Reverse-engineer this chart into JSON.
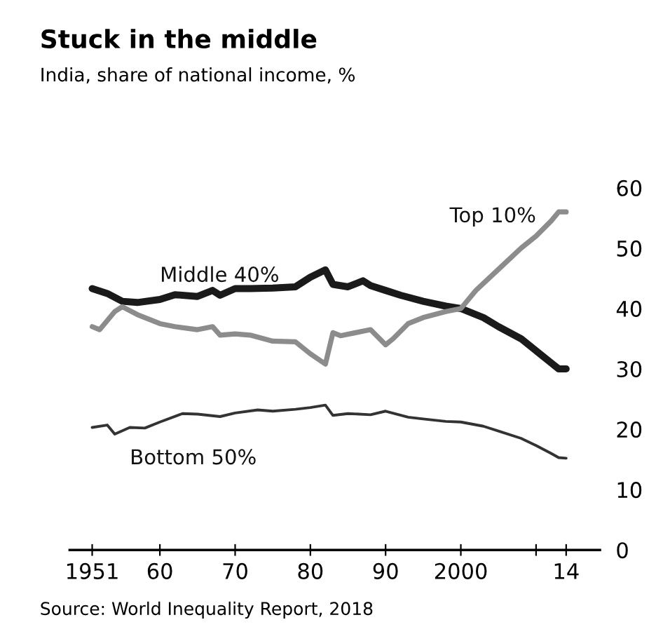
{
  "chart_data": {
    "type": "line",
    "title": "Stuck in the middle",
    "subtitle": "India, share of national income, %",
    "xlim": [
      1948,
      2018.5
    ],
    "ylim": [
      0,
      60
    ],
    "xticks": [
      {
        "value": 1951,
        "label": "1951"
      },
      {
        "value": 1960,
        "label": "60"
      },
      {
        "value": 1970,
        "label": "70"
      },
      {
        "value": 1980,
        "label": "80"
      },
      {
        "value": 1990,
        "label": "90"
      },
      {
        "value": 2000,
        "label": "2000"
      },
      {
        "value": 2010,
        "label": null
      },
      {
        "value": 2014,
        "label": "14"
      }
    ],
    "yticks": [
      0,
      10,
      20,
      30,
      40,
      50,
      60
    ],
    "grid": false,
    "legend": false,
    "series": [
      {
        "name": "Middle 40%",
        "color": "#1a1a1a",
        "x": [
          1951,
          1953,
          1955,
          1957,
          1960,
          1962,
          1965,
          1967,
          1968,
          1970,
          1972,
          1975,
          1978,
          1980,
          1982,
          1983,
          1985,
          1987,
          1988,
          1990,
          1992,
          1995,
          1998,
          2000,
          2003,
          2005,
          2008,
          2010,
          2012,
          2013,
          2014
        ],
        "values": [
          43.3,
          42.5,
          41.2,
          41,
          41.5,
          42.3,
          42,
          43,
          42.2,
          43.3,
          43.3,
          43.4,
          43.6,
          45.2,
          46.4,
          44,
          43.6,
          44.6,
          43.8,
          43,
          42.2,
          41.2,
          40.4,
          40,
          38.5,
          37,
          35,
          33,
          31,
          30,
          30
        ]
      },
      {
        "name": "Top 10%",
        "color": "#8c8c8c",
        "x": [
          1951,
          1952,
          1954,
          1955,
          1957,
          1960,
          1962,
          1965,
          1967,
          1968,
          1970,
          1972,
          1975,
          1978,
          1980,
          1982,
          1983,
          1984,
          1986,
          1988,
          1990,
          1991,
          1993,
          1995,
          1998,
          2000,
          2002,
          2005,
          2008,
          2010,
          2012,
          2013,
          2014
        ],
        "values": [
          37,
          36.5,
          39.5,
          40.3,
          39,
          37.5,
          37,
          36.5,
          37,
          35.6,
          35.8,
          35.6,
          34.6,
          34.5,
          32.5,
          30.8,
          36,
          35.5,
          36,
          36.5,
          34,
          35,
          37.5,
          38.5,
          39.5,
          40,
          43,
          46.5,
          50,
          52,
          54.5,
          56,
          56
        ]
      },
      {
        "name": "Bottom 50%",
        "color": "#333333",
        "x": [
          1951,
          1953,
          1954,
          1956,
          1958,
          1960,
          1963,
          1965,
          1968,
          1970,
          1973,
          1975,
          1978,
          1980,
          1982,
          1983,
          1985,
          1988,
          1990,
          1993,
          1995,
          1998,
          2000,
          2003,
          2005,
          2008,
          2010,
          2012,
          2013,
          2014
        ],
        "values": [
          20.3,
          20.7,
          19.2,
          20.3,
          20.2,
          21.2,
          22.6,
          22.5,
          22.1,
          22.7,
          23.2,
          23,
          23.3,
          23.6,
          24,
          22.3,
          22.6,
          22.4,
          23,
          22,
          21.7,
          21.3,
          21.2,
          20.5,
          19.7,
          18.5,
          17.3,
          16,
          15.3,
          15.2
        ]
      }
    ],
    "annotations": [
      "Source: World Inequality Report, 2018"
    ]
  }
}
